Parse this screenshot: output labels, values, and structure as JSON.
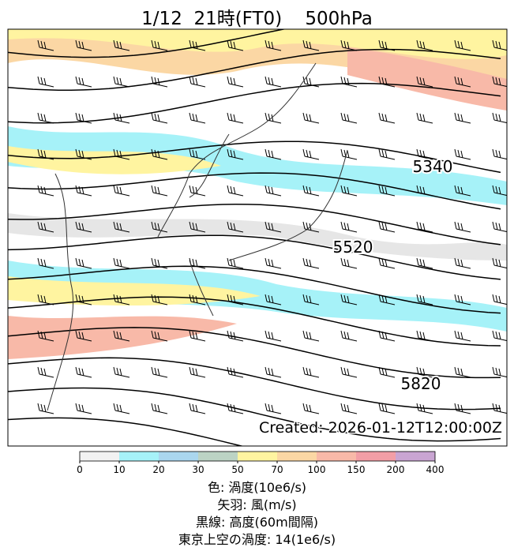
{
  "title": "1/12  21時(FT0)    500hPa",
  "map": {
    "contour_labels": [
      5340,
      5520,
      5820
    ],
    "created": "Created: 2026-01-12T12:00:00Z"
  },
  "colorbar": {
    "ticks": [
      0,
      10,
      20,
      30,
      50,
      70,
      100,
      150,
      200,
      400
    ],
    "colors": [
      "#f2f2f2",
      "#a6f2f8",
      "#aad6ee",
      "#bcd3c4",
      "#fff4a0",
      "#fbd7a4",
      "#f8b9a8",
      "#f29ea6",
      "#c9a5d2"
    ]
  },
  "legend": [
    "色: 渦度(10e6/s)",
    "矢羽: 風(m/s)",
    "黒線: 高度(60m間隔)",
    "東京上空の渦度: 14(1e6/s)"
  ]
}
